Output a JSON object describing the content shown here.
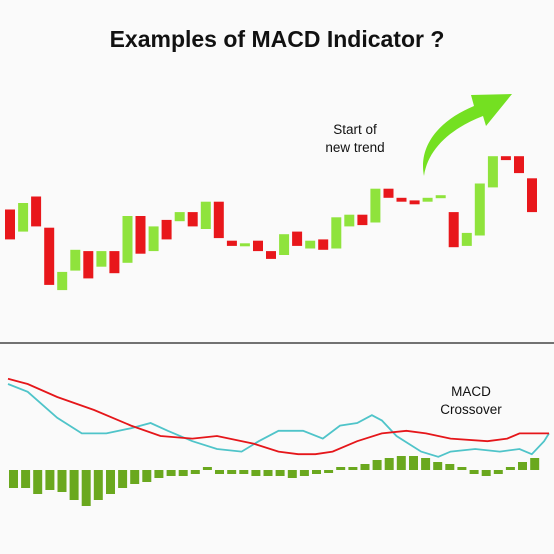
{
  "title": "Examples of MACD Indicator ?",
  "colors": {
    "bullish": "#8fe33c",
    "bearish": "#e8171b",
    "macd_line": "#e5161a",
    "signal_line": "#4fc4c9",
    "histogram": "#6aa81e",
    "arrow": "#74e021",
    "divider": "#222222"
  },
  "annotations": {
    "trend_line1": "Start of",
    "trend_line2": "new trend",
    "crossover_line1": "MACD",
    "crossover_line2": "Crossover"
  },
  "chart_data": [
    {
      "type": "candlestick",
      "candles": [
        {
          "dir": "bear",
          "open": 62,
          "close": 85
        },
        {
          "dir": "bull",
          "open": 68,
          "close": 90
        },
        {
          "dir": "bear",
          "open": 95,
          "close": 72
        },
        {
          "dir": "bear",
          "open": 71,
          "close": 27
        },
        {
          "dir": "bull",
          "open": 23,
          "close": 37
        },
        {
          "dir": "bull",
          "open": 38,
          "close": 54
        },
        {
          "dir": "bear",
          "open": 53,
          "close": 32
        },
        {
          "dir": "bull",
          "open": 41,
          "close": 53
        },
        {
          "dir": "bear",
          "open": 53,
          "close": 36
        },
        {
          "dir": "bull",
          "open": 44,
          "close": 80
        },
        {
          "dir": "bear",
          "open": 80,
          "close": 51
        },
        {
          "dir": "bull",
          "open": 53,
          "close": 72
        },
        {
          "dir": "bear",
          "open": 77,
          "close": 62
        },
        {
          "dir": "bull",
          "open": 76,
          "close": 83
        },
        {
          "dir": "bear",
          "open": 83,
          "close": 72
        },
        {
          "dir": "bull",
          "open": 70,
          "close": 91
        },
        {
          "dir": "bear",
          "open": 91,
          "close": 63
        },
        {
          "dir": "bear",
          "open": 61,
          "close": 57
        },
        {
          "dir": "bull",
          "open": 57,
          "close": 59
        },
        {
          "dir": "bear",
          "open": 61,
          "close": 53
        },
        {
          "dir": "bear",
          "open": 53,
          "close": 47
        },
        {
          "dir": "bull",
          "open": 50,
          "close": 66
        },
        {
          "dir": "bear",
          "open": 68,
          "close": 57
        },
        {
          "dir": "bull",
          "open": 55,
          "close": 61
        },
        {
          "dir": "bear",
          "open": 62,
          "close": 54
        },
        {
          "dir": "bull",
          "open": 55,
          "close": 79
        },
        {
          "dir": "bull",
          "open": 72,
          "close": 81
        },
        {
          "dir": "bear",
          "open": 81,
          "close": 73
        },
        {
          "dir": "bull",
          "open": 75,
          "close": 101
        },
        {
          "dir": "bear",
          "open": 101,
          "close": 94
        },
        {
          "dir": "bear",
          "open": 94,
          "close": 91
        },
        {
          "dir": "bear",
          "open": 92,
          "close": 89
        },
        {
          "dir": "bull",
          "open": 91,
          "close": 94
        },
        {
          "dir": "bull",
          "open": 94,
          "close": 96
        },
        {
          "dir": "bear",
          "open": 83,
          "close": 56
        },
        {
          "dir": "bull",
          "open": 57,
          "close": 67
        },
        {
          "dir": "bull",
          "open": 65,
          "close": 105
        },
        {
          "dir": "bull",
          "open": 102,
          "close": 126
        },
        {
          "dir": "bear",
          "open": 126,
          "close": 123
        },
        {
          "dir": "bear",
          "open": 126,
          "close": 113
        },
        {
          "dir": "bear",
          "open": 109,
          "close": 83
        }
      ]
    },
    {
      "type": "line",
      "series": [
        {
          "key": "macd",
          "values": [
            [
              0,
              12
            ],
            [
              8,
              10
            ],
            [
              20,
              5
            ],
            [
              35,
              0
            ],
            [
              50,
              -6
            ],
            [
              62,
              -10
            ],
            [
              75,
              -11
            ],
            [
              85,
              -10
            ],
            [
              100,
              -13
            ],
            [
              110,
              -16
            ],
            [
              118,
              -17
            ],
            [
              125,
              -17
            ],
            [
              132,
              -16
            ],
            [
              142,
              -12
            ],
            [
              152,
              -9
            ],
            [
              162,
              -8
            ],
            [
              170,
              -9
            ],
            [
              180,
              -11
            ],
            [
              195,
              -12
            ],
            [
              203,
              -11
            ],
            [
              208,
              -9
            ],
            [
              220,
              -9
            ]
          ]
        },
        {
          "key": "signal",
          "values": [
            [
              0,
              10
            ],
            [
              8,
              7
            ],
            [
              20,
              -3
            ],
            [
              30,
              -9
            ],
            [
              40,
              -9
            ],
            [
              50,
              -7
            ],
            [
              58,
              -5
            ],
            [
              65,
              -8
            ],
            [
              75,
              -12
            ],
            [
              85,
              -15
            ],
            [
              95,
              -16
            ],
            [
              102,
              -12
            ],
            [
              110,
              -8
            ],
            [
              120,
              -8
            ],
            [
              128,
              -11
            ],
            [
              135,
              -6
            ],
            [
              142,
              -5
            ],
            [
              148,
              -2
            ],
            [
              152,
              -4
            ],
            [
              158,
              -10
            ],
            [
              168,
              -16
            ],
            [
              175,
              -18
            ],
            [
              180,
              -16
            ],
            [
              190,
              -15
            ],
            [
              200,
              -16
            ],
            [
              208,
              -15
            ],
            [
              213,
              -17
            ],
            [
              218,
              -12
            ],
            [
              220,
              -9
            ]
          ]
        }
      ],
      "xlim": [
        0,
        220
      ]
    },
    {
      "type": "bar",
      "values": [
        -9,
        -9,
        -12,
        -10,
        -11,
        -15,
        -18,
        -15,
        -12,
        -9,
        -7,
        -6,
        -4,
        -3,
        -3,
        -2,
        0,
        -2,
        -2,
        -2,
        -3,
        -3,
        -3,
        -4,
        -3,
        -2,
        -1,
        0,
        1,
        3,
        5,
        6,
        7,
        7,
        6,
        4,
        3,
        1,
        -2,
        -3,
        -2,
        0,
        4,
        6
      ]
    }
  ]
}
